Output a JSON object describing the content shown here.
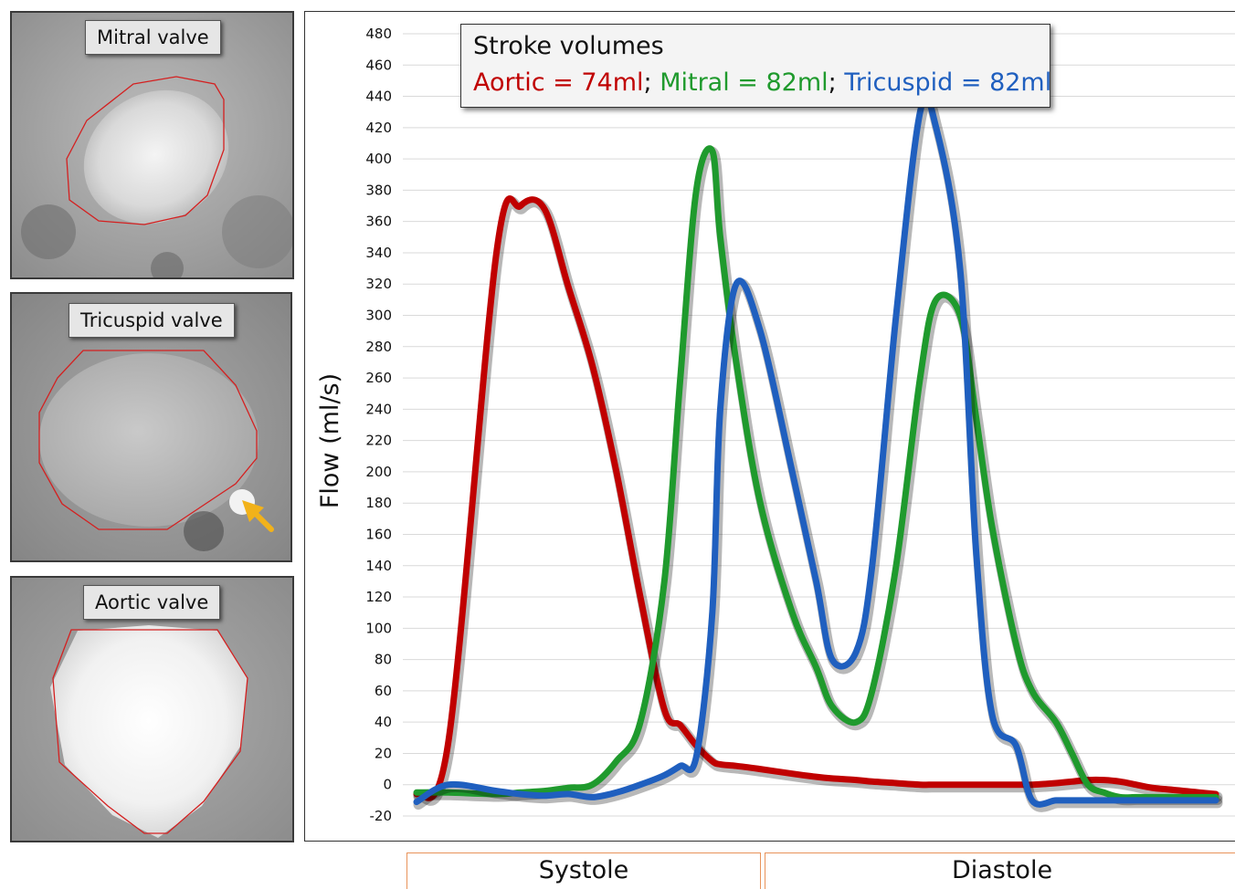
{
  "panels": {
    "mitral": {
      "label": "Mitral valve"
    },
    "tricuspid": {
      "label": "Tricuspid  valve"
    },
    "aortic": {
      "label": "Aortic  valve"
    }
  },
  "legend": {
    "title": "Stroke volumes",
    "entries": [
      {
        "text": "Aortic = 74ml",
        "color": "#c00000"
      },
      {
        "text": "Mitral = 82ml",
        "color": "#1f9a2d"
      },
      {
        "text": "Tricuspid = 82ml",
        "color": "#1f5fbf"
      }
    ],
    "separator": "; "
  },
  "phases": {
    "systole": "Systole",
    "diastole": "Diastole"
  },
  "chart_data": {
    "type": "line",
    "ylabel": "Flow (ml/s)",
    "ylim": [
      -20,
      480
    ],
    "yticks": [
      -20,
      0,
      20,
      40,
      60,
      80,
      100,
      120,
      140,
      160,
      180,
      200,
      220,
      240,
      260,
      280,
      300,
      320,
      340,
      360,
      380,
      400,
      420,
      440,
      460,
      480
    ],
    "grid": true,
    "x": [
      0,
      0.04,
      0.1,
      0.13,
      0.16,
      0.19,
      0.22,
      0.25,
      0.28,
      0.31,
      0.33,
      0.35,
      0.37,
      0.38,
      0.4,
      0.43,
      0.47,
      0.5,
      0.52,
      0.55,
      0.57,
      0.6,
      0.63,
      0.65,
      0.68,
      0.7,
      0.72,
      0.75,
      0.77,
      0.8,
      0.82,
      0.84,
      0.86,
      0.88,
      0.9,
      0.92,
      0.94,
      0.96,
      0.98,
      1.0
    ],
    "series": [
      {
        "name": "Aortic",
        "color": "#c00000",
        "values": [
          -6,
          28,
          340,
          370,
          368,
          318,
          268,
          200,
          120,
          48,
          38,
          25,
          15,
          13,
          12,
          10,
          7,
          5,
          4,
          3,
          2,
          1,
          0,
          0,
          0,
          0,
          0,
          0,
          0,
          1,
          2,
          3,
          3,
          2,
          0,
          -2,
          -3,
          -4,
          -5,
          -6
        ]
      },
      {
        "name": "Mitral",
        "color": "#1f9a2d",
        "values": [
          -5,
          -5,
          -6,
          -5,
          -4,
          -2,
          0,
          15,
          40,
          130,
          260,
          380,
          405,
          350,
          270,
          180,
          110,
          75,
          50,
          40,
          60,
          140,
          260,
          310,
          300,
          235,
          165,
          90,
          60,
          40,
          20,
          0,
          -5,
          -8,
          -8,
          -8,
          -8,
          -8,
          -8,
          -8
        ]
      },
      {
        "name": "Tricuspid",
        "color": "#1f5fbf",
        "values": [
          -11,
          0,
          -4,
          -6,
          -7,
          -6,
          -8,
          -5,
          0,
          6,
          12,
          18,
          110,
          240,
          320,
          290,
          200,
          130,
          80,
          85,
          140,
          300,
          430,
          420,
          330,
          150,
          45,
          25,
          -10,
          -10,
          -10,
          -10,
          -10,
          -10,
          -10,
          -10,
          -10,
          -10,
          -10,
          -10
        ]
      }
    ]
  }
}
